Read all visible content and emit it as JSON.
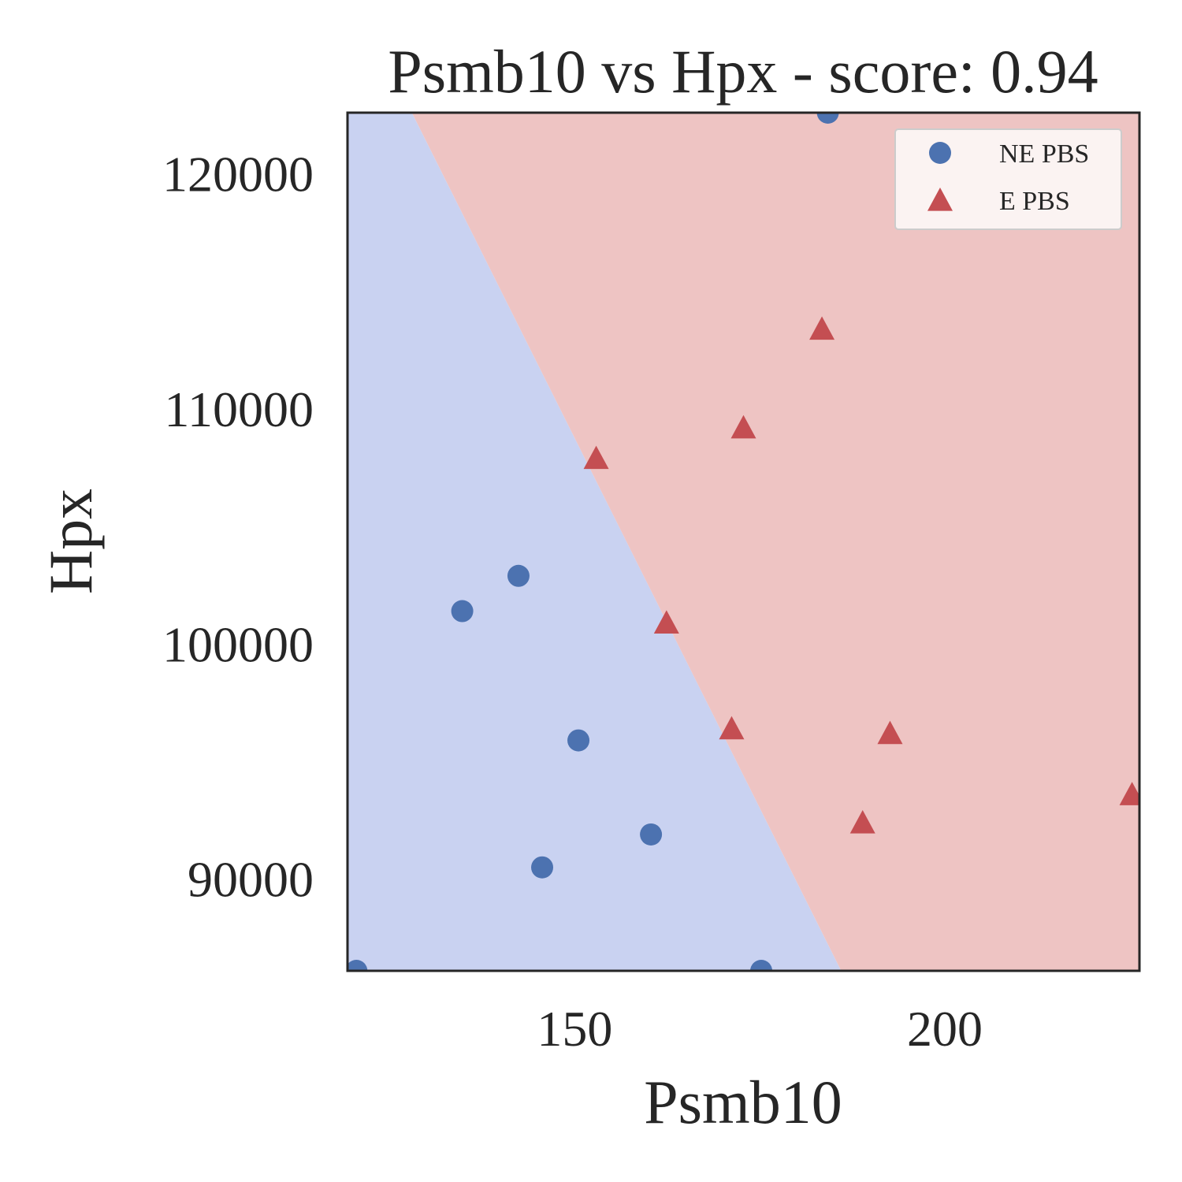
{
  "chart_data": {
    "type": "scatter",
    "title": "Psmb10 vs Hpx - score: 0.94",
    "xlabel": "Psmb10",
    "ylabel": "Hpx",
    "xlim": [
      119.3,
      226.3
    ],
    "ylim": [
      86100,
      122600
    ],
    "xticks": [
      150,
      200
    ],
    "xtick_labels": [
      "150",
      "200"
    ],
    "yticks": [
      90000,
      100000,
      110000,
      120000
    ],
    "ytick_labels": [
      "90000",
      "100000",
      "110000",
      "120000"
    ],
    "grid": false,
    "legend_position": "top-right",
    "decision_boundary": {
      "points": [
        [
          128.0,
          122600
        ],
        [
          186.0,
          86100
        ]
      ],
      "left_region_class": "NE PBS",
      "right_region_class": "E PBS"
    },
    "series": [
      {
        "name": "NE PBS",
        "marker": "circle",
        "color": "#4c72b0",
        "points": [
          [
            120.5,
            86100
          ],
          [
            134.8,
            101400
          ],
          [
            142.4,
            102900
          ],
          [
            145.6,
            90500
          ],
          [
            150.5,
            95900
          ],
          [
            160.3,
            91900
          ],
          [
            175.2,
            86100
          ],
          [
            184.2,
            122600
          ]
        ]
      },
      {
        "name": "E PBS",
        "marker": "triangle",
        "color": "#c44e52",
        "points": [
          [
            152.9,
            107900
          ],
          [
            162.4,
            100900
          ],
          [
            171.2,
            96400
          ],
          [
            172.8,
            109200
          ],
          [
            183.4,
            113400
          ],
          [
            188.9,
            92400
          ],
          [
            192.6,
            96200
          ],
          [
            225.3,
            93600
          ]
        ]
      }
    ],
    "region_colors": {
      "NE PBS": "#c9d2f1",
      "E PBS": "#eec4c3"
    },
    "axes_edge_color": "#262626"
  }
}
